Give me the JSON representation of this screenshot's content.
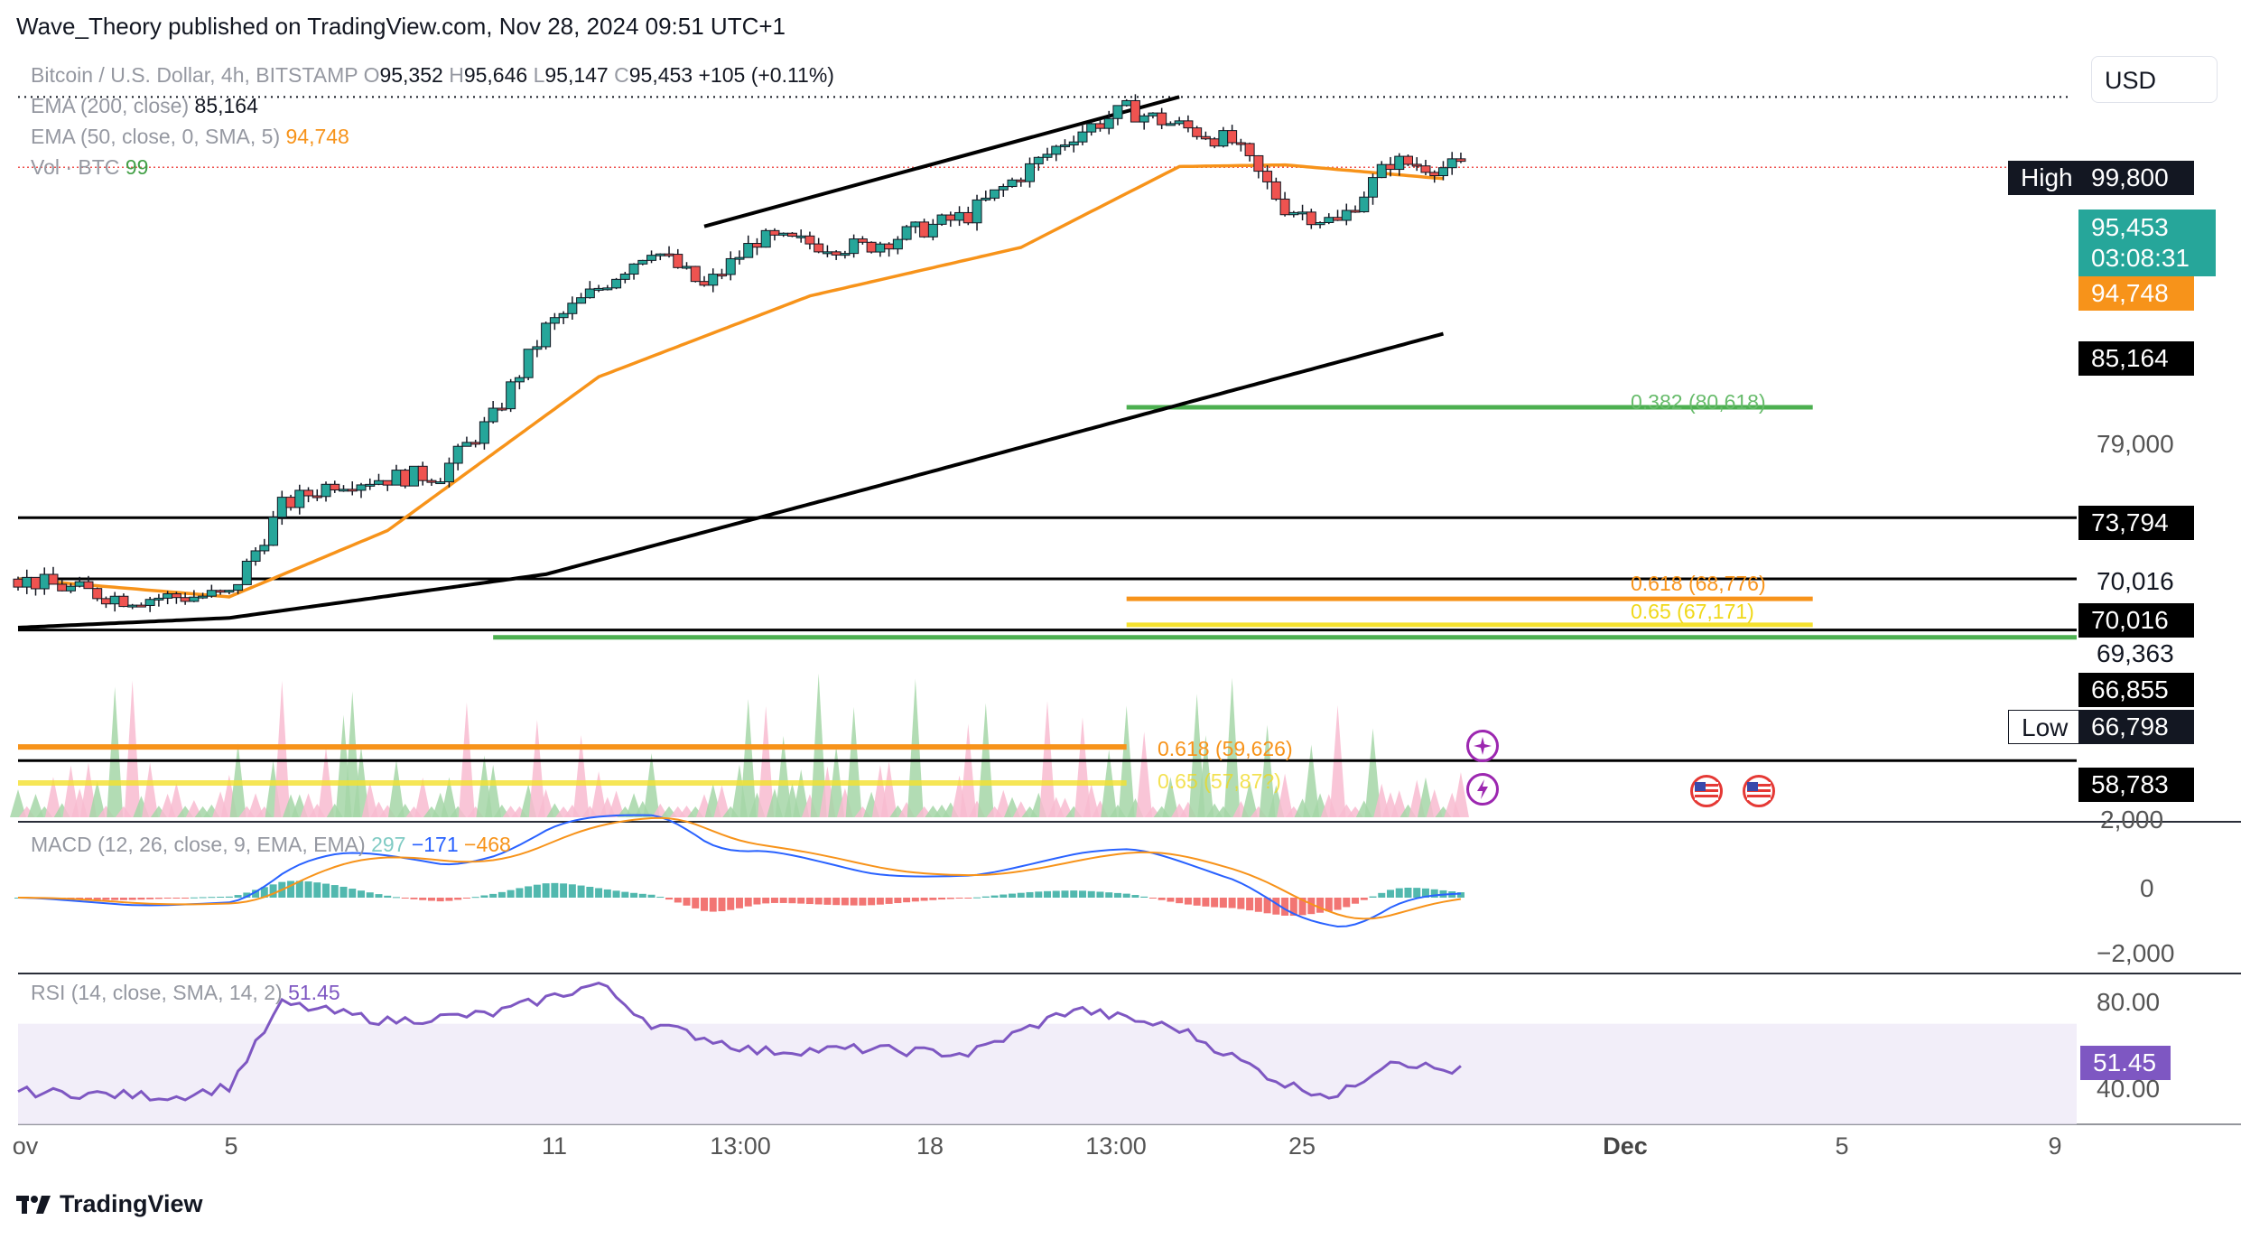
{
  "header": {
    "publisher": "Wave_Theory published on TradingView.com, Nov 28, 2024 09:51 UTC+1"
  },
  "symbol": {
    "name": "Bitcoin / U.S. Dollar, 4h, BITSTAMP",
    "o_key": "O",
    "o": "95,352",
    "h_key": "H",
    "h": "95,646",
    "l_key": "L",
    "l": "95,147",
    "c_key": "C",
    "c": "95,453",
    "change": "+105 (+0.11%)"
  },
  "indicators": {
    "ema200": {
      "label": "EMA (200, close)",
      "value": "85,164",
      "color": "#000000"
    },
    "ema50": {
      "label": "EMA (50, close, 0, SMA, 5)",
      "value": "94,748",
      "color": "#f7931a"
    },
    "vol": {
      "label": "Vol · BTC",
      "value": "99",
      "color": "#26a69a"
    },
    "macd": {
      "label": "MACD (12, 26, close, 9, EMA, EMA)",
      "hist": "297",
      "macd": "−171",
      "signal": "−468",
      "axis": [
        "2,000",
        "0",
        "−2,000"
      ]
    },
    "rsi": {
      "label": "RSI (14, close, SMA, 14, 2)",
      "value": "51.45",
      "axis": [
        "80.00",
        "40.00"
      ],
      "color": "#7e57c2"
    }
  },
  "price_axis": {
    "currency": "USD",
    "high_label": "High",
    "high_value": "99,800",
    "last_price": "95,453",
    "countdown": "03:08:31",
    "ema50_tag": "94,748",
    "ema200_tag": "85,164",
    "tick_79000": "79,000",
    "level_73794": "73,794",
    "level_70016_plain": "70,016",
    "level_70016_tag": "70,016",
    "level_69363": "69,363",
    "level_66855": "66,855",
    "low_label": "Low",
    "low_value": "66,798",
    "level_58783": "58,783"
  },
  "fib_labels": {
    "f382": "0.382 (80,618)",
    "f618a": "0.618 (68,776)",
    "f65a": "0.65 (67,171)",
    "f618b": "0.618 (59,626)",
    "f65b": "0.65 (57,87?)"
  },
  "time_axis": [
    "ov",
    "5",
    "11",
    "13:00",
    "18",
    "13:00",
    "25",
    "Dec",
    "5",
    "9"
  ],
  "footer": {
    "brand": "TradingView"
  },
  "colors": {
    "up": "#26a69a",
    "down": "#ef5350",
    "ema50": "#f7931a",
    "ema200": "#000000",
    "fib_green": "#4caf50",
    "fib_orange": "#f7931a",
    "fib_yellow": "#f5e12d",
    "rsi": "#7e57c2"
  },
  "chart_data": {
    "type": "candlestick",
    "title": "Bitcoin / U.S. Dollar, 4h, BITSTAMP",
    "x_range": [
      "2024-11-01",
      "2024-12-10"
    ],
    "ylim": [
      55000,
      103000
    ],
    "price_checkpoints": [
      {
        "x": "2024-11-01",
        "close": 70000
      },
      {
        "x": "2024-11-03",
        "close": 68800
      },
      {
        "x": "2024-11-05",
        "close": 69000
      },
      {
        "x": "2024-11-06",
        "close": 74500
      },
      {
        "x": "2024-11-07",
        "close": 76000
      },
      {
        "x": "2024-11-09",
        "close": 76500
      },
      {
        "x": "2024-11-10",
        "close": 80000
      },
      {
        "x": "2024-11-11",
        "close": 85500
      },
      {
        "x": "2024-11-12",
        "close": 88000
      },
      {
        "x": "2024-11-13",
        "close": 90500
      },
      {
        "x": "2024-11-14",
        "close": 88000
      },
      {
        "x": "2024-11-15",
        "close": 91000
      },
      {
        "x": "2024-11-17",
        "close": 90500
      },
      {
        "x": "2024-11-19",
        "close": 92500
      },
      {
        "x": "2024-11-21",
        "close": 97500
      },
      {
        "x": "2024-11-22",
        "close": 99000
      },
      {
        "x": "2024-11-23",
        "close": 98000
      },
      {
        "x": "2024-11-24",
        "close": 97000
      },
      {
        "x": "2024-11-25",
        "close": 93000
      },
      {
        "x": "2024-11-26",
        "close": 92000
      },
      {
        "x": "2024-11-27",
        "close": 95800
      },
      {
        "x": "2024-11-28",
        "close": 95453
      }
    ],
    "ema50_checkpoints": [
      {
        "x": "2024-11-01",
        "y": 70000
      },
      {
        "x": "2024-11-05",
        "y": 68900
      },
      {
        "x": "2024-11-08",
        "y": 73000
      },
      {
        "x": "2024-11-12",
        "y": 82500
      },
      {
        "x": "2024-11-16",
        "y": 87500
      },
      {
        "x": "2024-11-20",
        "y": 90500
      },
      {
        "x": "2024-11-23",
        "y": 95500
      },
      {
        "x": "2024-11-25",
        "y": 95600
      },
      {
        "x": "2024-11-28",
        "y": 94748
      }
    ],
    "ema200_checkpoints": [
      {
        "x": "2024-11-01",
        "y": 67000
      },
      {
        "x": "2024-11-05",
        "y": 67600
      },
      {
        "x": "2024-11-11",
        "y": 70300
      },
      {
        "x": "2024-11-17",
        "y": 75500
      },
      {
        "x": "2024-11-22",
        "y": 79900
      },
      {
        "x": "2024-11-28",
        "y": 85164
      }
    ],
    "trendline": [
      {
        "x": "2024-11-14",
        "y": 91800
      },
      {
        "x": "2024-11-23",
        "y": 99800
      }
    ],
    "horizontal_levels": [
      {
        "label": "High",
        "value": 99800,
        "style": "dotted"
      },
      {
        "value": 73794
      },
      {
        "value": 70016
      },
      {
        "value": 66855
      },
      {
        "value": 58783
      }
    ],
    "fib_levels": [
      {
        "label": "0.382 (80,618)",
        "value": 80618
      },
      {
        "label": "0.618 (68,776)",
        "value": 68776
      },
      {
        "label": "0.65 (67,171)",
        "value": 67171
      },
      {
        "label": "0.618 (59,626)",
        "value": 59626
      },
      {
        "label": "0.65 (57,87?)"
      }
    ],
    "macd_ylim": [
      -3000,
      3000
    ],
    "rsi_ylim": [
      30,
      90
    ],
    "rsi_checkpoints": [
      {
        "x": "2024-11-01",
        "y": 43
      },
      {
        "x": "2024-11-04",
        "y": 41
      },
      {
        "x": "2024-11-05",
        "y": 45
      },
      {
        "x": "2024-11-06",
        "y": 78
      },
      {
        "x": "2024-11-08",
        "y": 71
      },
      {
        "x": "2024-11-10",
        "y": 74
      },
      {
        "x": "2024-11-12",
        "y": 86
      },
      {
        "x": "2024-11-13",
        "y": 70
      },
      {
        "x": "2024-11-15",
        "y": 59
      },
      {
        "x": "2024-11-17",
        "y": 60
      },
      {
        "x": "2024-11-19",
        "y": 58
      },
      {
        "x": "2024-11-21",
        "y": 76
      },
      {
        "x": "2024-11-23",
        "y": 68
      },
      {
        "x": "2024-11-25",
        "y": 46
      },
      {
        "x": "2024-11-26",
        "y": 41
      },
      {
        "x": "2024-11-27",
        "y": 56
      },
      {
        "x": "2024-11-28",
        "y": 51.45
      }
    ]
  }
}
